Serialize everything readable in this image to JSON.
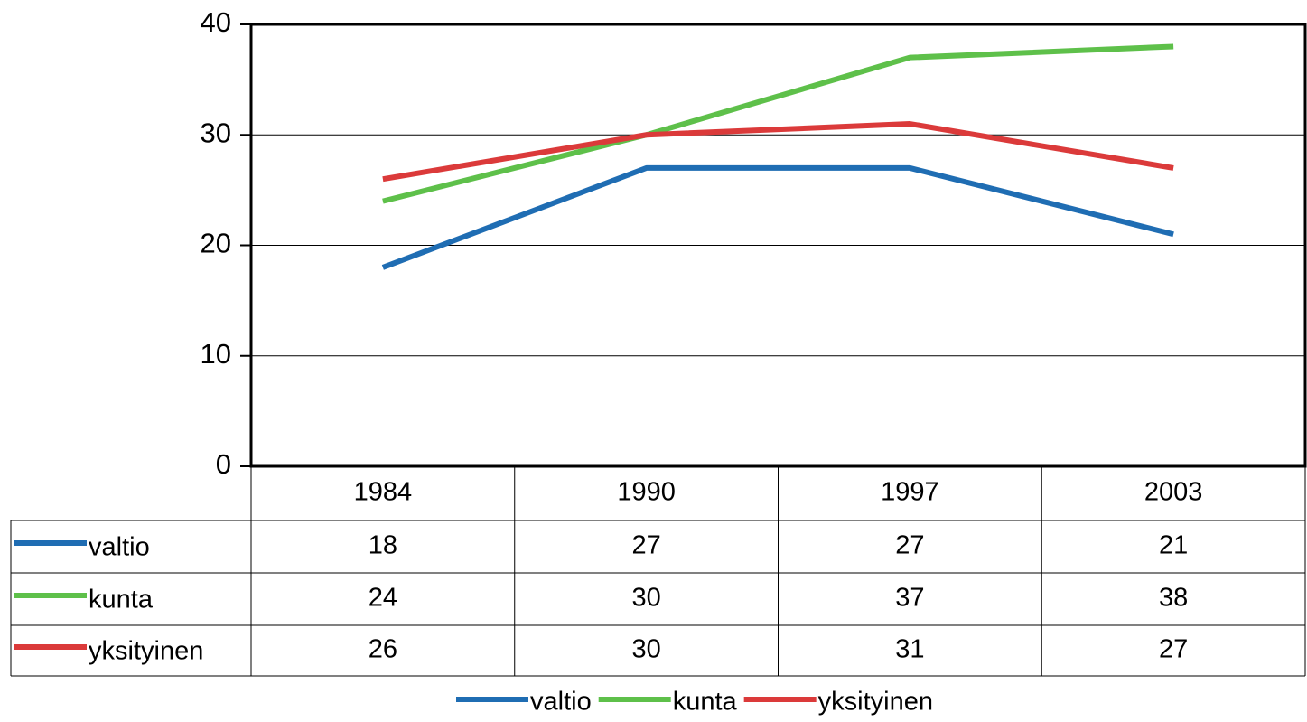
{
  "chart_data": {
    "type": "line",
    "categories": [
      "1984",
      "1990",
      "1997",
      "2003"
    ],
    "series": [
      {
        "name": "valtio",
        "color": "#1f6db3",
        "values": [
          18,
          27,
          27,
          21
        ]
      },
      {
        "name": "kunta",
        "color": "#5ec04a",
        "values": [
          24,
          30,
          37,
          38
        ]
      },
      {
        "name": "yksityinen",
        "color": "#db3a3a",
        "values": [
          26,
          30,
          31,
          27
        ]
      }
    ],
    "ylim": [
      0,
      40
    ],
    "yticks": [
      0,
      10,
      20,
      30,
      40
    ],
    "grid": true,
    "legend": "bottom",
    "data_table": true
  }
}
